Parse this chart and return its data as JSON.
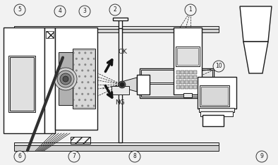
{
  "bg_color": "#f2f2f2",
  "lc": "#1a1a1a",
  "fc_white": "#ffffff",
  "fc_light": "#e8e8e8",
  "fc_mid": "#c8c8c8",
  "fc_dark": "#909090",
  "fc_vdark": "#505050",
  "figsize": [
    3.94,
    2.34
  ],
  "dpi": 100
}
